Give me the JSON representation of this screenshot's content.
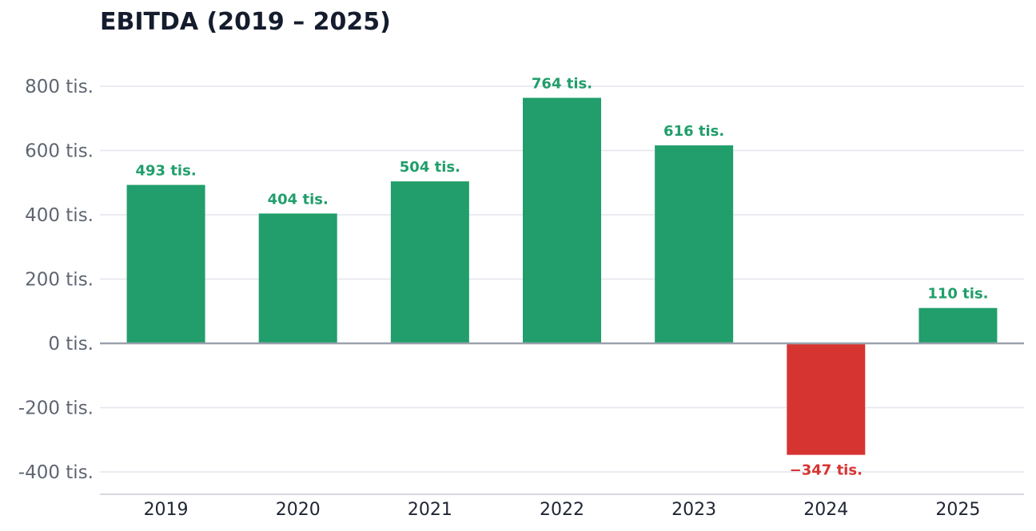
{
  "chart_data": {
    "type": "bar",
    "title": "EBITDA (2019 – 2025)",
    "xlabel": "",
    "ylabel": "",
    "categories": [
      "2019",
      "2020",
      "2021",
      "2022",
      "2023",
      "2024",
      "2025"
    ],
    "values": [
      493,
      404,
      504,
      764,
      616,
      -347,
      110
    ],
    "data_labels": [
      "493 tis.",
      "404 tis.",
      "504 tis.",
      "764 tis.",
      "616 tis.",
      "−347 tis.",
      "110 tis."
    ],
    "yticks": [
      800,
      600,
      400,
      200,
      0,
      -200,
      -400
    ],
    "ytick_labels": [
      "800 tis.",
      "600 tis.",
      "400 tis.",
      "200 tis.",
      "0 tis.",
      "-200 tis.",
      "-400 tis."
    ],
    "ylim": [
      -470,
      900
    ],
    "grid": true,
    "colors": {
      "positive": "#219e6b",
      "negative": "#d63431",
      "grid": "#e3e6ee",
      "zero_line": "#9aa1ad",
      "axis": "#c8ccd4"
    }
  }
}
